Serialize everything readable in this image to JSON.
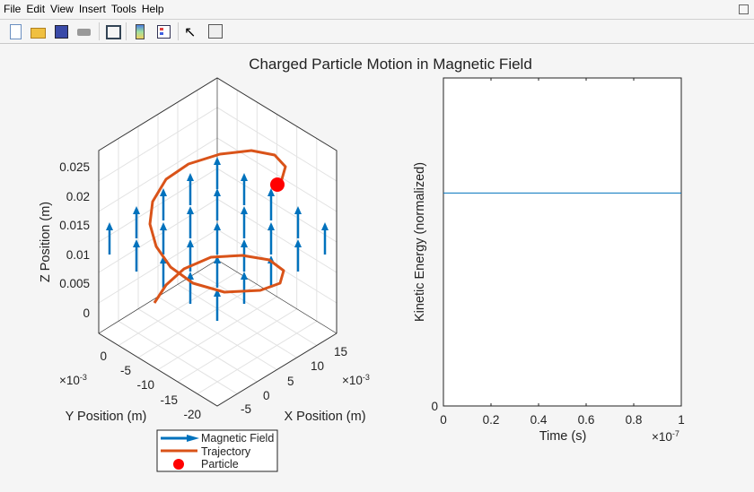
{
  "menu": [
    "File",
    "Edit",
    "View",
    "Insert",
    "Tools",
    "Help"
  ],
  "toolbar": [
    "new-figure",
    "open-file",
    "save",
    "print",
    "link-plot",
    "colorbar",
    "legend",
    "pointer",
    "property-inspector"
  ],
  "title": "Charged Particle Motion in Magnetic Field",
  "chart_data": [
    {
      "type": "3d-line-quiver",
      "zlabel": "Z Position (m)",
      "ylabel": "Y Position (m)",
      "xlabel": "X Position (m)",
      "zticks": [
        "0",
        "0.005",
        "0.01",
        "0.015",
        "0.02",
        "0.025"
      ],
      "yticks": [
        "0",
        "-5",
        "-10",
        "-15",
        "-20"
      ],
      "y_exponent": "×10",
      "y_exp_power": "-3",
      "xticks": [
        "-5",
        "0",
        "5",
        "10",
        "15"
      ],
      "x_exponent": "×10",
      "x_exp_power": "-3",
      "legend": [
        "Magnetic Field",
        "Trajectory",
        "Particle"
      ],
      "legend_placement": "bottom",
      "colors": {
        "field": "#0072bd",
        "trajectory": "#d95319",
        "particle": "#ff0000"
      }
    },
    {
      "type": "line",
      "xlabel": "Time (s)",
      "ylabel": "Kinetic Energy (normalized)",
      "xticks": [
        "0",
        "0.2",
        "0.4",
        "0.6",
        "0.8",
        "1"
      ],
      "x_exponent": "×10",
      "x_exp_power": "-7",
      "yticks": [
        "0"
      ],
      "x": [
        0,
        1
      ],
      "y": [
        1,
        1
      ],
      "xlim": [
        0,
        1
      ],
      "ylim": [
        0,
        1.54
      ],
      "color": "#0072bd"
    }
  ]
}
